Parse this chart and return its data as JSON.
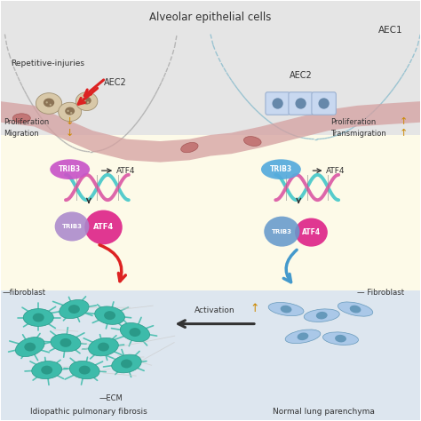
{
  "title": "Alveolar epithelial cells",
  "bg_top": "#e5e5e5",
  "bg_yellow": "#fdfae8",
  "bg_bottom": "#dde6ef",
  "membrane_color": "#d4a0a0",
  "membrane_color2": "#c49090",
  "aec1_label": "AEC1",
  "aec2_label_left": "AEC2",
  "aec2_label_right": "AEC2",
  "injuries_label": "Repetitive-injuries",
  "prolif_left": "Proliferation",
  "migr_left": "Migration",
  "prolif_right": "Proliferation",
  "transmigr_right": "Transmigration",
  "trib3_label": "TRIB3",
  "atf4_label": "ATF4",
  "ecm_label": "—ECM",
  "ipf_label": "Idiopathic pulmonary fibrosis",
  "nlp_label": "Normal lung parenchyma",
  "fibroblast_left": "—fibroblast",
  "fibroblast_right": "— Fibroblast",
  "activation_label": "Activation",
  "arrow_up": "↑",
  "arrow_down": "↓",
  "trib3_color_left": "#c855c8",
  "trib3_color_right": "#55aadd",
  "atf4_color_left": "#dd2288",
  "atf4_color_right": "#dd2288",
  "dna_color1": "#55cccc",
  "dna_color2": "#dd66aa",
  "cell_teal": "#3dbbaa",
  "cell_teal_dark": "#2a9988",
  "cell_blue_light": "#aac8e8",
  "cell_blue_dark": "#6699bb",
  "text_color": "#333333",
  "arrow_red": "#dd2222",
  "arrow_blue": "#4499cc",
  "arrow_black": "#333333",
  "arrow_gold": "#cc8800",
  "rbc_color": "#c07070",
  "rbc_edge": "#a05050",
  "injured_cell": "#d8c8a8",
  "injured_nucleus": "#8B7355",
  "aec2_cell_fill": "#c8d8f0",
  "aec2_cell_edge": "#9ab0d0",
  "aec2_nucleus": "#6688aa",
  "trib3_blob_left_fill": "#aa88cc",
  "trib3_blob_right_fill": "#6699cc"
}
